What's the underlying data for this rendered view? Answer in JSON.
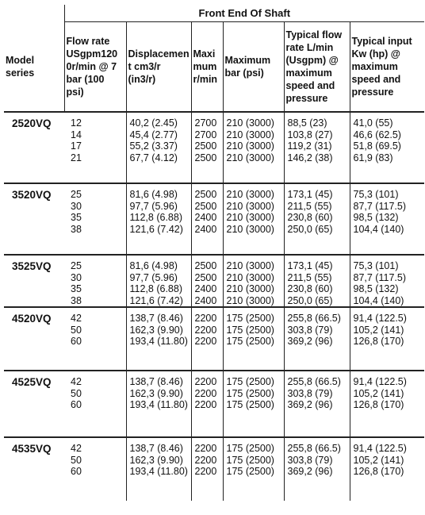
{
  "table": {
    "group_header": "Front End Of Shaft",
    "columns": {
      "model": "Model series",
      "flow": "Flow rate USgpm1200r/min @ 7 bar (100 psi)",
      "displacement": "Displacement cm3/r (in3/r)",
      "max_rpm": "Maximum r/min",
      "max_bar": "Maximum bar (psi)",
      "typical_flow": "Typical flow rate L/min (Usgpm) @ maximum speed and pressure",
      "typical_power": "Typical input Kw (hp) @ maximum speed and pressure"
    },
    "column_header_lines": {
      "flow": [
        "Flow rate",
        "USgpm120",
        "0r/min @ 7",
        "bar (100",
        "psi)"
      ],
      "displacement": [
        "Displacemen",
        "t cm3/r (in3/r)"
      ],
      "max_rpm": [
        "Maxi",
        "mum",
        "r/min"
      ],
      "max_bar": [
        "Maximum",
        "bar (psi)"
      ],
      "typical_flow": [
        "Typical flow",
        "rate L/min",
        "(Usgpm) @",
        "maximum",
        "speed and",
        "pressure"
      ],
      "typical_power": [
        "Typical input",
        "Kw (hp) @",
        "maximum",
        "speed and",
        "pressure"
      ],
      "model": [
        "Model",
        "series"
      ]
    },
    "groups": [
      {
        "model": "2520VQ",
        "flow": [
          "12",
          "14",
          "17",
          "21"
        ],
        "displacement": [
          "40,2 (2.45)",
          "45,4 (2.77)",
          "55,2 (3.37)",
          "67,7 (4.12)"
        ],
        "max_rpm": [
          "2700",
          "2700",
          "2500",
          "2500"
        ],
        "max_bar": [
          "210 (3000)",
          "210 (3000)",
          "210 (3000)",
          "210 (3000)"
        ],
        "typical_flow": [
          "88,5 (23)",
          "103,8 (27)",
          "119,2 (31)",
          "146,2 (38)"
        ],
        "typical_power": [
          "41,0 (55)",
          "46,6 (62.5)",
          "51,8 (69.5)",
          "61,9 (83)"
        ]
      },
      {
        "model": "3520VQ",
        "flow": [
          "25",
          "30",
          "35",
          "38"
        ],
        "displacement": [
          "81,6 (4.98)",
          "97,7 (5.96)",
          "112,8 (6.88)",
          "121,6 (7.42)"
        ],
        "max_rpm": [
          "2500",
          "2500",
          "2400",
          "2400"
        ],
        "max_bar": [
          "210 (3000)",
          "210 (3000)",
          "210 (3000)",
          "210 (3000)"
        ],
        "typical_flow": [
          "173,1 (45)",
          "211,5 (55)",
          "230,8 (60)",
          "250,0 (65)"
        ],
        "typical_power": [
          "75,3 (101)",
          "87,7 (117.5)",
          "98,5 (132)",
          "104,4 (140)"
        ]
      },
      {
        "model": "3525VQ",
        "flow": [
          "25",
          "30",
          "35",
          "38"
        ],
        "displacement": [
          "81,6 (4.98)",
          "97,7 (5.96)",
          "112,8 (6.88)",
          "121,6 (7.42)"
        ],
        "max_rpm": [
          "2500",
          "2500",
          "2400",
          "2400"
        ],
        "max_bar": [
          "210 (3000)",
          "210 (3000)",
          "210 (3000)",
          "210 (3000)"
        ],
        "typical_flow": [
          "173,1 (45)",
          "211,5 (55)",
          "230,8 (60)",
          "250,0 (65)"
        ],
        "typical_power": [
          "75,3 (101)",
          "87,7 (117.5)",
          "98,5 (132)",
          "104,4 (140)"
        ]
      },
      {
        "model": "4520VQ",
        "flow": [
          "42",
          "50",
          "60"
        ],
        "displacement": [
          "138,7 (8.46)",
          "162,3 (9.90)",
          "193,4 (11.80)"
        ],
        "max_rpm": [
          "2200",
          "2200",
          "2200"
        ],
        "max_bar": [
          "175 (2500)",
          "175 (2500)",
          "175 (2500)"
        ],
        "typical_flow": [
          "255,8 (66.5)",
          "303,8 (79)",
          "369,2 (96)"
        ],
        "typical_power": [
          "91,4 (122.5)",
          "105,2 (141)",
          "126,8 (170)"
        ]
      },
      {
        "model": "4525VQ",
        "flow": [
          "42",
          "50",
          "60"
        ],
        "displacement": [
          "138,7 (8.46)",
          "162,3 (9.90)",
          "193,4 (11.80)"
        ],
        "max_rpm": [
          "2200",
          "2200",
          "2200"
        ],
        "max_bar": [
          "175 (2500)",
          "175 (2500)",
          "175 (2500)"
        ],
        "typical_flow": [
          "255,8 (66.5)",
          "303,8 (79)",
          "369,2 (96)"
        ],
        "typical_power": [
          "91,4 (122.5)",
          "105,2 (141)",
          "126,8 (170)"
        ]
      },
      {
        "model": "4535VQ",
        "flow": [
          "42",
          "50",
          "60"
        ],
        "displacement": [
          "138,7 (8.46)",
          "162,3 (9.90)",
          "193,4 (11.80)"
        ],
        "max_rpm": [
          "2200",
          "2200",
          "2200"
        ],
        "max_bar": [
          "175 (2500)",
          "175 (2500)",
          "175 (2500)"
        ],
        "typical_flow": [
          "255,8 (66.5)",
          "303,8 (79)",
          "369,2 (96)"
        ],
        "typical_power": [
          "91,4 (122.5)",
          "105,2 (141)",
          "126,8 (170)"
        ]
      }
    ]
  }
}
